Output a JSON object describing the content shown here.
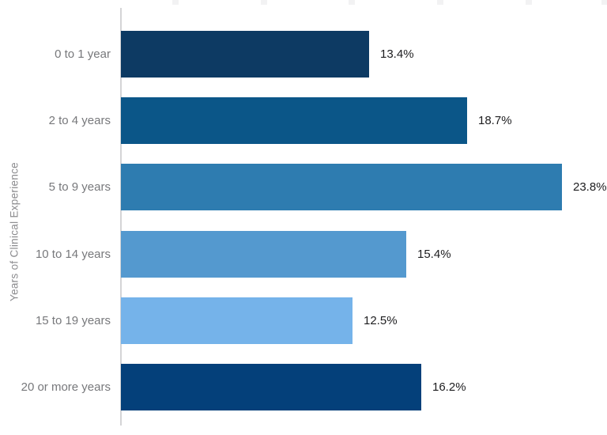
{
  "chart_data": {
    "type": "bar",
    "orientation": "horizontal",
    "title": "",
    "xlabel": "",
    "ylabel": "Years of Clinical Experience",
    "categories": [
      "0 to 1 year",
      "2 to 4 years",
      "5 to 9 years",
      "10 to 14 years",
      "15 to 19 years",
      "20 or more years"
    ],
    "values": [
      13.4,
      18.7,
      23.8,
      15.4,
      12.5,
      16.2
    ],
    "value_labels": [
      "13.4%",
      "18.7%",
      "23.8%",
      "15.4%",
      "12.5%",
      "16.2%"
    ],
    "xlim": [
      0,
      26.3
    ],
    "grid": false,
    "legend": false,
    "bar_colors": [
      "#0d3a63",
      "#0b5688",
      "#2e7cb0",
      "#5499cf",
      "#75b3ea",
      "#04407a"
    ],
    "axis_line_color": "#d4d4d6",
    "category_label_color": "#77787b",
    "value_label_color": "#1d1d1f"
  }
}
